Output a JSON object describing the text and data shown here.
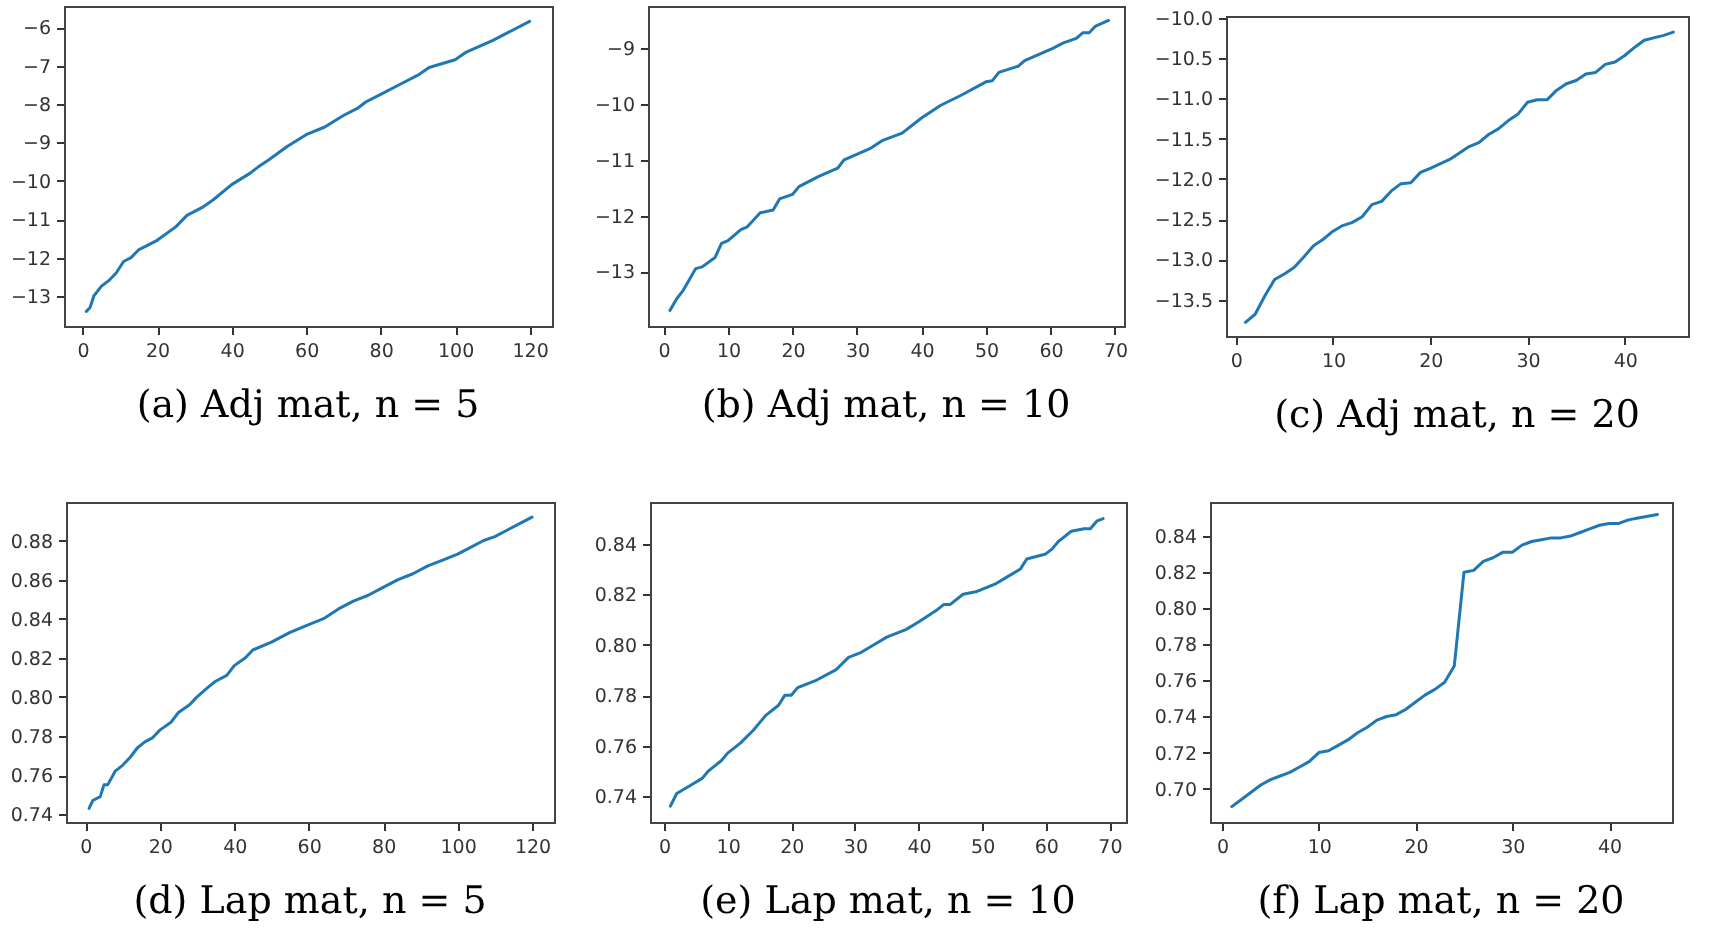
{
  "chart_data": [
    {
      "type": "line",
      "title": "(a) Adj mat, n = 5",
      "xlim": [
        -5,
        126
      ],
      "ylim": [
        -13.78,
        -5.45
      ],
      "xticks": [
        0,
        20,
        40,
        60,
        80,
        100,
        120
      ],
      "yticks": [
        -13,
        -12,
        -11,
        -10,
        -9,
        -8,
        -7,
        -6
      ],
      "x": [
        1,
        2,
        3,
        5,
        7,
        9,
        11,
        13,
        15,
        17,
        20,
        25,
        28,
        32,
        35,
        40,
        45,
        47,
        50,
        55,
        60,
        65,
        70,
        74,
        76,
        80,
        85,
        90,
        93,
        100,
        103,
        110,
        115,
        120
      ],
      "series": [
        {
          "color": "#1f77b4",
          "values": [
            -13.4,
            -13.3,
            -13.0,
            -12.75,
            -12.6,
            -12.4,
            -12.1,
            -12.0,
            -11.8,
            -11.7,
            -11.55,
            -11.2,
            -10.9,
            -10.7,
            -10.5,
            -10.1,
            -9.8,
            -9.65,
            -9.45,
            -9.1,
            -8.8,
            -8.6,
            -8.3,
            -8.1,
            -7.95,
            -7.75,
            -7.5,
            -7.25,
            -7.05,
            -6.85,
            -6.65,
            -6.35,
            -6.1,
            -5.85
          ]
        }
      ]
    },
    {
      "type": "line",
      "title": "(b) Adj mat, n = 10",
      "xlim": [
        -2.4,
        71.4
      ],
      "ylim": [
        -13.98,
        -8.24
      ],
      "xticks": [
        0,
        10,
        20,
        30,
        40,
        50,
        60,
        70
      ],
      "yticks": [
        -13,
        -12,
        -11,
        -10,
        -9
      ],
      "x": [
        1,
        2,
        3,
        5,
        6,
        8,
        9,
        10,
        12,
        13,
        15,
        17,
        18,
        20,
        21,
        24,
        27,
        28,
        32,
        34,
        37,
        40,
        43,
        46,
        50,
        51,
        52,
        55,
        56,
        60,
        62,
        64,
        65,
        66,
        67,
        69
      ],
      "series": [
        {
          "color": "#1f77b4",
          "values": [
            -13.7,
            -13.5,
            -13.35,
            -12.95,
            -12.92,
            -12.75,
            -12.5,
            -12.45,
            -12.25,
            -12.2,
            -11.95,
            -11.9,
            -11.7,
            -11.62,
            -11.48,
            -11.3,
            -11.15,
            -11.0,
            -10.8,
            -10.65,
            -10.52,
            -10.25,
            -10.02,
            -9.85,
            -9.6,
            -9.58,
            -9.43,
            -9.32,
            -9.22,
            -9.02,
            -8.9,
            -8.82,
            -8.72,
            -8.72,
            -8.6,
            -8.5
          ]
        }
      ]
    },
    {
      "type": "line",
      "title": "(c) Adj mat, n = 20",
      "xlim": [
        -1,
        46.5
      ],
      "ylim": [
        -13.95,
        -9.98
      ],
      "xticks": [
        0,
        10,
        20,
        30,
        40
      ],
      "yticks": [
        {
          "value": -13.5,
          "label": "−13.5"
        },
        {
          "value": -13,
          "label": "−13.0"
        },
        {
          "value": -12.5,
          "label": "−12.5"
        },
        {
          "value": -12,
          "label": "−12.0"
        },
        {
          "value": -11.5,
          "label": "−11.5"
        },
        {
          "value": -11,
          "label": "−11.0"
        },
        {
          "value": -10.5,
          "label": "−10.5"
        },
        {
          "value": -10,
          "label": "−10.0"
        }
      ],
      "x": [
        1,
        2,
        3,
        4,
        5,
        6,
        7,
        8,
        9,
        10,
        11,
        12,
        13,
        14,
        15,
        16,
        17,
        18,
        19,
        20,
        22,
        24,
        25,
        26,
        27,
        28,
        29,
        30,
        31,
        32,
        33,
        34,
        35,
        36,
        37,
        38,
        39,
        40,
        41,
        42,
        44,
        45
      ],
      "series": [
        {
          "color": "#1f77b4",
          "values": [
            -13.78,
            -13.68,
            -13.45,
            -13.25,
            -13.18,
            -13.1,
            -12.97,
            -12.83,
            -12.75,
            -12.65,
            -12.58,
            -12.54,
            -12.47,
            -12.32,
            -12.28,
            -12.15,
            -12.06,
            -12.05,
            -11.92,
            -11.87,
            -11.76,
            -11.6,
            -11.55,
            -11.45,
            -11.38,
            -11.28,
            -11.2,
            -11.05,
            -11.02,
            -11.02,
            -10.9,
            -10.82,
            -10.78,
            -10.7,
            -10.68,
            -10.58,
            -10.55,
            -10.47,
            -10.37,
            -10.28,
            -10.22,
            -10.18
          ]
        }
      ]
    },
    {
      "type": "line",
      "title": "(d) Lap mat, n = 5",
      "xlim": [
        -5.2,
        125.9
      ],
      "ylim": [
        0.736,
        0.8997
      ],
      "xticks": [
        0,
        20,
        40,
        60,
        80,
        100,
        120
      ],
      "yticks": [
        0.74,
        0.76,
        0.78,
        {
          "value": 0.8,
          "label": "0.80"
        },
        0.82,
        0.84,
        0.86,
        0.88
      ],
      "x": [
        1,
        2,
        4,
        5,
        6,
        8,
        10,
        12,
        14,
        16,
        18,
        20,
        23,
        25,
        28,
        30,
        33,
        35,
        38,
        40,
        43,
        45,
        50,
        55,
        60,
        64,
        68,
        72,
        76,
        80,
        84,
        88,
        92,
        96,
        100,
        103,
        107,
        110,
        113,
        116,
        120
      ],
      "series": [
        {
          "color": "#1f77b4",
          "values": [
            0.743,
            0.747,
            0.749,
            0.755,
            0.755,
            0.762,
            0.765,
            0.769,
            0.774,
            0.777,
            0.779,
            0.783,
            0.787,
            0.792,
            0.796,
            0.8,
            0.805,
            0.808,
            0.811,
            0.816,
            0.82,
            0.824,
            0.828,
            0.833,
            0.837,
            0.84,
            0.845,
            0.849,
            0.852,
            0.856,
            0.86,
            0.863,
            0.867,
            0.87,
            0.873,
            0.876,
            0.88,
            0.882,
            0.885,
            0.888,
            0.892
          ]
        }
      ]
    },
    {
      "type": "line",
      "title": "(e) Lap mat, n = 10",
      "xlim": [
        -2.2,
        72.6
      ],
      "ylim": [
        0.7297,
        0.8566
      ],
      "xticks": [
        0,
        10,
        20,
        30,
        40,
        50,
        60,
        70
      ],
      "yticks": [
        0.74,
        0.76,
        0.78,
        {
          "value": 0.8,
          "label": "0.80"
        },
        0.82,
        0.84
      ],
      "x": [
        1,
        2,
        4,
        6,
        7,
        9,
        10,
        12,
        14,
        16,
        18,
        19,
        20,
        21,
        24,
        27,
        29,
        31,
        33,
        35,
        38,
        40,
        43,
        44,
        45,
        47,
        49,
        52,
        54,
        56,
        57,
        60,
        61,
        62,
        64,
        66,
        67,
        68,
        69
      ],
      "series": [
        {
          "color": "#1f77b4",
          "values": [
            0.736,
            0.741,
            0.744,
            0.747,
            0.75,
            0.754,
            0.757,
            0.761,
            0.766,
            0.772,
            0.776,
            0.78,
            0.78,
            0.783,
            0.786,
            0.79,
            0.795,
            0.797,
            0.8,
            0.803,
            0.806,
            0.809,
            0.814,
            0.816,
            0.816,
            0.82,
            0.821,
            0.824,
            0.827,
            0.83,
            0.834,
            0.836,
            0.838,
            0.841,
            0.845,
            0.846,
            0.846,
            0.849,
            0.85
          ]
        }
      ]
    },
    {
      "type": "line",
      "title": "(f) Lap mat, n = 20",
      "xlim": [
        -1.25,
        46.5
      ],
      "ylim": [
        0.6815,
        0.8589
      ],
      "xticks": [
        0,
        10,
        20,
        30,
        40
      ],
      "yticks": [
        {
          "value": 0.7,
          "label": "0.70"
        },
        0.72,
        0.74,
        0.76,
        0.78,
        {
          "value": 0.8,
          "label": "0.80"
        },
        0.82,
        0.84
      ],
      "x": [
        1,
        2,
        3,
        4,
        5,
        6,
        7,
        8,
        9,
        10,
        11,
        12,
        13,
        14,
        15,
        16,
        17,
        18,
        19,
        20,
        21,
        22,
        23,
        24,
        25,
        26,
        27,
        28,
        29,
        30,
        31,
        32,
        33,
        34,
        35,
        36,
        37,
        38,
        39,
        40,
        41,
        42,
        43,
        44,
        45
      ],
      "series": [
        {
          "color": "#1f77b4",
          "values": [
            0.69,
            0.694,
            0.698,
            0.702,
            0.705,
            0.707,
            0.709,
            0.712,
            0.715,
            0.72,
            0.721,
            0.724,
            0.727,
            0.731,
            0.734,
            0.738,
            0.74,
            0.741,
            0.744,
            0.748,
            0.752,
            0.755,
            0.759,
            0.768,
            0.82,
            0.821,
            0.826,
            0.828,
            0.831,
            0.831,
            0.835,
            0.837,
            0.838,
            0.839,
            0.839,
            0.84,
            0.842,
            0.844,
            0.846,
            0.847,
            0.847,
            0.849,
            0.85,
            0.851,
            0.852
          ]
        }
      ]
    }
  ]
}
